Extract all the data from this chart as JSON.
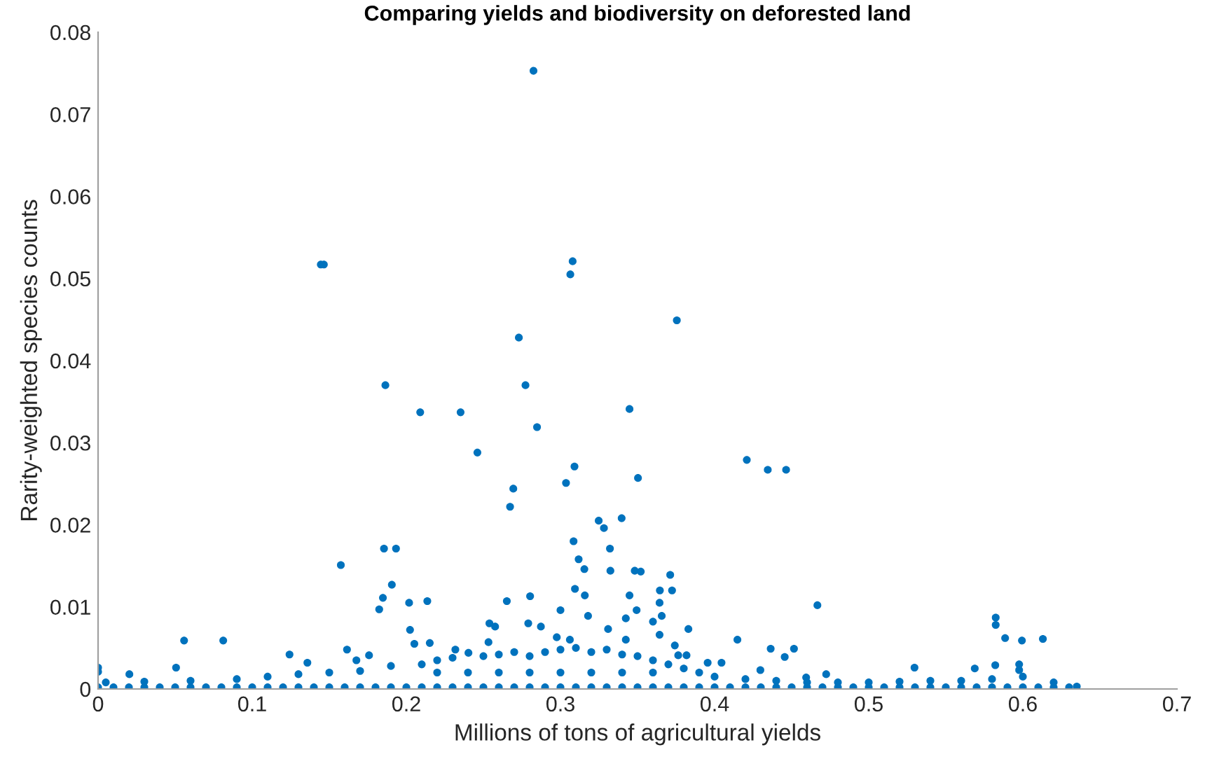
{
  "chart_data": {
    "type": "scatter",
    "title": "Comparing yields and biodiversity on deforested land",
    "xlabel": "Millions of tons of agricultural yields",
    "ylabel": "Rarity-weighted species counts",
    "xlim": [
      0,
      0.7
    ],
    "xticks": [
      0,
      0.1,
      0.2,
      0.3,
      0.4,
      0.5,
      0.6,
      0.7
    ],
    "ylim": [
      0,
      0.08
    ],
    "yticks": [
      0,
      0.01,
      0.02,
      0.03,
      0.04,
      0.05,
      0.06,
      0.07,
      0.08
    ],
    "grid": false,
    "marker": "circle",
    "series": [
      {
        "color": "#0072bd",
        "x": [
          0.2825,
          0.1445,
          0.1465,
          0.3079,
          0.3064,
          0.273,
          0.3755,
          0.1864,
          0.2773,
          0.2352,
          0.209,
          0.3448,
          0.2848,
          0.2461,
          0.3091,
          0.3036,
          0.3503,
          0.4209,
          0.4345,
          0.4464,
          0.2694,
          0.2673,
          0.1575,
          0.1855,
          0.1933,
          0.1906,
          0.1848,
          0.1824,
          0.2018,
          0.2136,
          0.0558,
          0.0812,
          0.3085,
          0.3118,
          0.3155,
          0.3248,
          0.3282,
          0.3397,
          0.3321,
          0.3324,
          0.3094,
          0.3158,
          0.3179,
          0.3,
          0.2652,
          0.2803,
          0.3482,
          0.3521,
          0.3712,
          0.3645,
          0.3724,
          0.3448,
          0.3643,
          0.3494,
          0.3657,
          0.3424,
          0.36,
          0.383,
          0.3643,
          0.4667,
          0.4148,
          0.4364,
          0.4515,
          0.4455,
          0.5824,
          0.5824,
          0.5885,
          0.5994,
          0.613,
          0.5297,
          0.5688,
          0.5821,
          0.5976,
          0.5976,
          0.4724,
          0.4297,
          0.4594,
          0.3742,
          0.3764,
          0.3818,
          0.3955,
          0.4045,
          0.1242,
          0.1358,
          0.0203,
          0.0506,
          0.1615,
          0.1676,
          0.1758,
          0.2024,
          0.2052,
          0.2152,
          0.2318,
          0.2403,
          0.2533,
          0.2539,
          0.2576,
          0.2791,
          0.2873,
          0.2976,
          0.3061,
          0.3309,
          0.3424,
          0.0,
          0.0,
          0.005,
          0.03,
          0.06,
          0.09,
          0.11,
          0.13,
          0.15,
          0.17,
          0.19,
          0.21,
          0.22,
          0.23,
          0.25,
          0.26,
          0.27,
          0.28,
          0.29,
          0.3,
          0.31,
          0.32,
          0.33,
          0.34,
          0.35,
          0.36,
          0.37,
          0.38,
          0.39,
          0.4,
          0.42,
          0.44,
          0.46,
          0.48,
          0.5,
          0.52,
          0.54,
          0.56,
          0.58,
          0.6,
          0.62,
          0.635,
          0.22,
          0.24,
          0.26,
          0.28,
          0.3,
          0.32,
          0.34,
          0.36,
          0.0,
          0.01,
          0.02,
          0.03,
          0.04,
          0.05,
          0.06,
          0.07,
          0.08,
          0.09,
          0.1,
          0.11,
          0.12,
          0.13,
          0.14,
          0.15,
          0.16,
          0.17,
          0.18,
          0.19,
          0.2,
          0.21,
          0.22,
          0.23,
          0.24,
          0.25,
          0.26,
          0.27,
          0.28,
          0.29,
          0.3,
          0.31,
          0.32,
          0.33,
          0.34,
          0.35,
          0.36,
          0.37,
          0.38,
          0.39,
          0.4,
          0.41,
          0.42,
          0.43,
          0.44,
          0.45,
          0.46,
          0.47,
          0.48,
          0.49,
          0.5,
          0.51,
          0.52,
          0.53,
          0.54,
          0.55,
          0.56,
          0.57,
          0.58,
          0.59,
          0.6,
          0.61,
          0.62,
          0.63
        ],
        "values": [
          0.0753,
          0.0517,
          0.0517,
          0.0521,
          0.0505,
          0.0428,
          0.0449,
          0.037,
          0.037,
          0.0337,
          0.0337,
          0.0341,
          0.0319,
          0.0288,
          0.0271,
          0.0251,
          0.0257,
          0.0279,
          0.0267,
          0.0267,
          0.0244,
          0.0222,
          0.0151,
          0.0171,
          0.0171,
          0.0127,
          0.0111,
          0.0097,
          0.0105,
          0.0107,
          0.0059,
          0.0059,
          0.018,
          0.0158,
          0.0146,
          0.0205,
          0.0196,
          0.0208,
          0.0171,
          0.0144,
          0.0122,
          0.0114,
          0.0089,
          0.0096,
          0.0107,
          0.0113,
          0.0144,
          0.0143,
          0.0139,
          0.012,
          0.012,
          0.0114,
          0.0105,
          0.0096,
          0.0089,
          0.0086,
          0.0082,
          0.0073,
          0.0066,
          0.0102,
          0.006,
          0.0049,
          0.0049,
          0.0039,
          0.0087,
          0.0078,
          0.0062,
          0.0059,
          0.0061,
          0.0026,
          0.0025,
          0.0029,
          0.003,
          0.0023,
          0.0018,
          0.0023,
          0.0014,
          0.0053,
          0.0041,
          0.0041,
          0.0032,
          0.0032,
          0.0042,
          0.0032,
          0.0018,
          0.0026,
          0.0048,
          0.0035,
          0.0041,
          0.0072,
          0.0055,
          0.0056,
          0.0048,
          0.0044,
          0.0057,
          0.008,
          0.0076,
          0.008,
          0.0076,
          0.0063,
          0.006,
          0.0073,
          0.006,
          0.0026,
          0.0021,
          0.0008,
          0.0009,
          0.001,
          0.0012,
          0.0015,
          0.0018,
          0.002,
          0.0022,
          0.0028,
          0.003,
          0.0035,
          0.0038,
          0.004,
          0.0042,
          0.0045,
          0.004,
          0.0045,
          0.0048,
          0.005,
          0.0045,
          0.0048,
          0.0042,
          0.004,
          0.0035,
          0.003,
          0.0025,
          0.002,
          0.0015,
          0.0012,
          0.001,
          0.0008,
          0.0008,
          0.0008,
          0.0009,
          0.001,
          0.001,
          0.0012,
          0.0015,
          0.0008,
          0.0003,
          0.002,
          0.002,
          0.002,
          0.002,
          0.002,
          0.002,
          0.002,
          0.002,
          0.0002,
          0.0002,
          0.0002,
          0.0002,
          0.0002,
          0.0002,
          0.0002,
          0.0002,
          0.0002,
          0.0002,
          0.0002,
          0.0002,
          0.0002,
          0.0002,
          0.0002,
          0.0002,
          0.0002,
          0.0002,
          0.0002,
          0.0002,
          0.0002,
          0.0002,
          0.0002,
          0.0002,
          0.0002,
          0.0002,
          0.0002,
          0.0002,
          0.0002,
          0.0002,
          0.0002,
          0.0002,
          0.0002,
          0.0002,
          0.0002,
          0.0002,
          0.0002,
          0.0002,
          0.0002,
          0.0002,
          0.0002,
          0.0002,
          0.0002,
          0.0002,
          0.0002,
          0.0002,
          0.0002,
          0.0002,
          0.0002,
          0.0002,
          0.0002,
          0.0002,
          0.0002,
          0.0002,
          0.0002,
          0.0002,
          0.0002,
          0.0002,
          0.0002,
          0.0002,
          0.0002,
          0.0002,
          0.0002,
          0.0002
        ]
      }
    ]
  }
}
